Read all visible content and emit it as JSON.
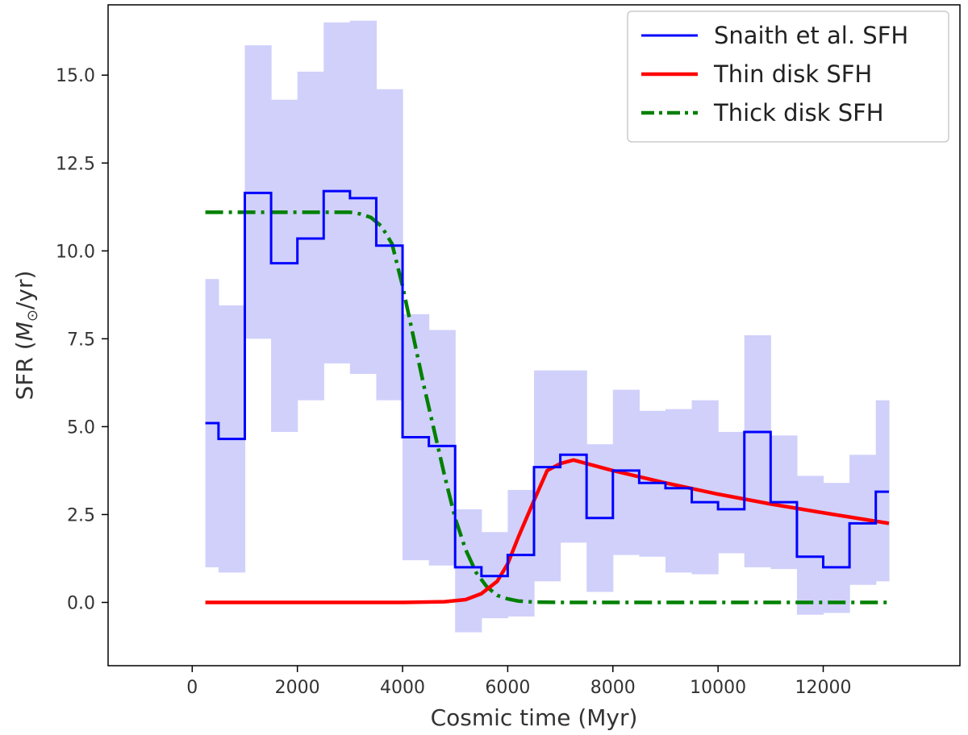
{
  "chart_data": {
    "type": "line",
    "xlabel": "Cosmic time (Myr)",
    "ylabel": "SFR (M⊙/yr)",
    "ylabel_parts": {
      "prefix": "SFR (",
      "symbol": "M",
      "subscript": "⊙",
      "suffix": "/yr)"
    },
    "xlim": [
      -1600,
      14600
    ],
    "ylim": [
      -1.8,
      17.0
    ],
    "xticks": [
      0,
      2000,
      4000,
      6000,
      8000,
      10000,
      12000
    ],
    "xtick_labels": [
      "0",
      "2000",
      "4000",
      "6000",
      "8000",
      "10000",
      "12000"
    ],
    "yticks": [
      0.0,
      2.5,
      5.0,
      7.5,
      10.0,
      12.5,
      15.0
    ],
    "ytick_labels": [
      "0.0",
      "2.5",
      "5.0",
      "7.5",
      "10.0",
      "12.5",
      "15.0"
    ],
    "grid": false,
    "legend_position": "top-right",
    "bin_edges": [
      250,
      500,
      1000,
      1500,
      2000,
      2500,
      3000,
      3500,
      4000,
      4500,
      5000,
      5500,
      6000,
      6500,
      7000,
      7500,
      8000,
      8500,
      9000,
      9500,
      10000,
      10500,
      11000,
      11500,
      12000,
      12500,
      13000,
      13250
    ],
    "series": [
      {
        "name": "Snaith et al. SFH",
        "color": "#0000ff",
        "style": "step",
        "values": [
          5.1,
          4.65,
          11.65,
          9.65,
          10.35,
          11.7,
          11.5,
          10.15,
          4.7,
          4.45,
          1.0,
          0.75,
          1.35,
          3.85,
          4.2,
          2.4,
          3.75,
          3.4,
          3.25,
          2.85,
          2.65,
          4.85,
          2.85,
          1.3,
          1.0,
          2.25,
          3.15
        ],
        "upper": [
          9.2,
          8.45,
          15.85,
          14.3,
          15.1,
          16.5,
          16.55,
          14.6,
          8.2,
          7.75,
          2.65,
          2.0,
          3.2,
          6.6,
          6.6,
          4.5,
          6.05,
          5.45,
          5.5,
          5.75,
          4.85,
          7.6,
          4.75,
          3.6,
          3.4,
          4.2,
          5.75
        ],
        "lower": [
          1.0,
          0.85,
          7.5,
          4.85,
          5.75,
          6.8,
          6.5,
          5.75,
          1.2,
          1.05,
          -0.85,
          -0.45,
          -0.4,
          0.6,
          1.7,
          0.3,
          1.35,
          1.3,
          0.85,
          0.8,
          1.4,
          1.0,
          0.95,
          -0.35,
          -0.3,
          0.5,
          0.6
        ]
      },
      {
        "name": "Thin disk SFH",
        "color": "#ff0000",
        "style": "line",
        "x": [
          250,
          1000,
          2000,
          3000,
          4000,
          4800,
          5200,
          5500,
          5800,
          6000,
          6200,
          6500,
          6750,
          7000,
          7250,
          7500,
          8000,
          9000,
          10000,
          11000,
          12000,
          13250
        ],
        "y": [
          0,
          0,
          0,
          0,
          0,
          0.02,
          0.08,
          0.25,
          0.6,
          1.1,
          1.85,
          2.9,
          3.75,
          3.95,
          4.05,
          3.95,
          3.75,
          3.4,
          3.08,
          2.8,
          2.55,
          2.25
        ]
      },
      {
        "name": "Thick disk SFH",
        "color": "#008000",
        "style": "dashdot",
        "x": [
          250,
          1000,
          2000,
          3000,
          3200,
          3400,
          3600,
          3800,
          4000,
          4200,
          4400,
          4600,
          4800,
          5000,
          5200,
          5400,
          5600,
          5800,
          6000,
          6200,
          6500,
          7000,
          8000,
          10000,
          13250
        ],
        "y": [
          11.1,
          11.1,
          11.1,
          11.1,
          11.05,
          10.95,
          10.7,
          10.2,
          9.0,
          7.6,
          6.2,
          4.9,
          3.6,
          2.4,
          1.5,
          0.85,
          0.45,
          0.2,
          0.1,
          0.04,
          0.01,
          0,
          0,
          0,
          0
        ]
      }
    ]
  }
}
